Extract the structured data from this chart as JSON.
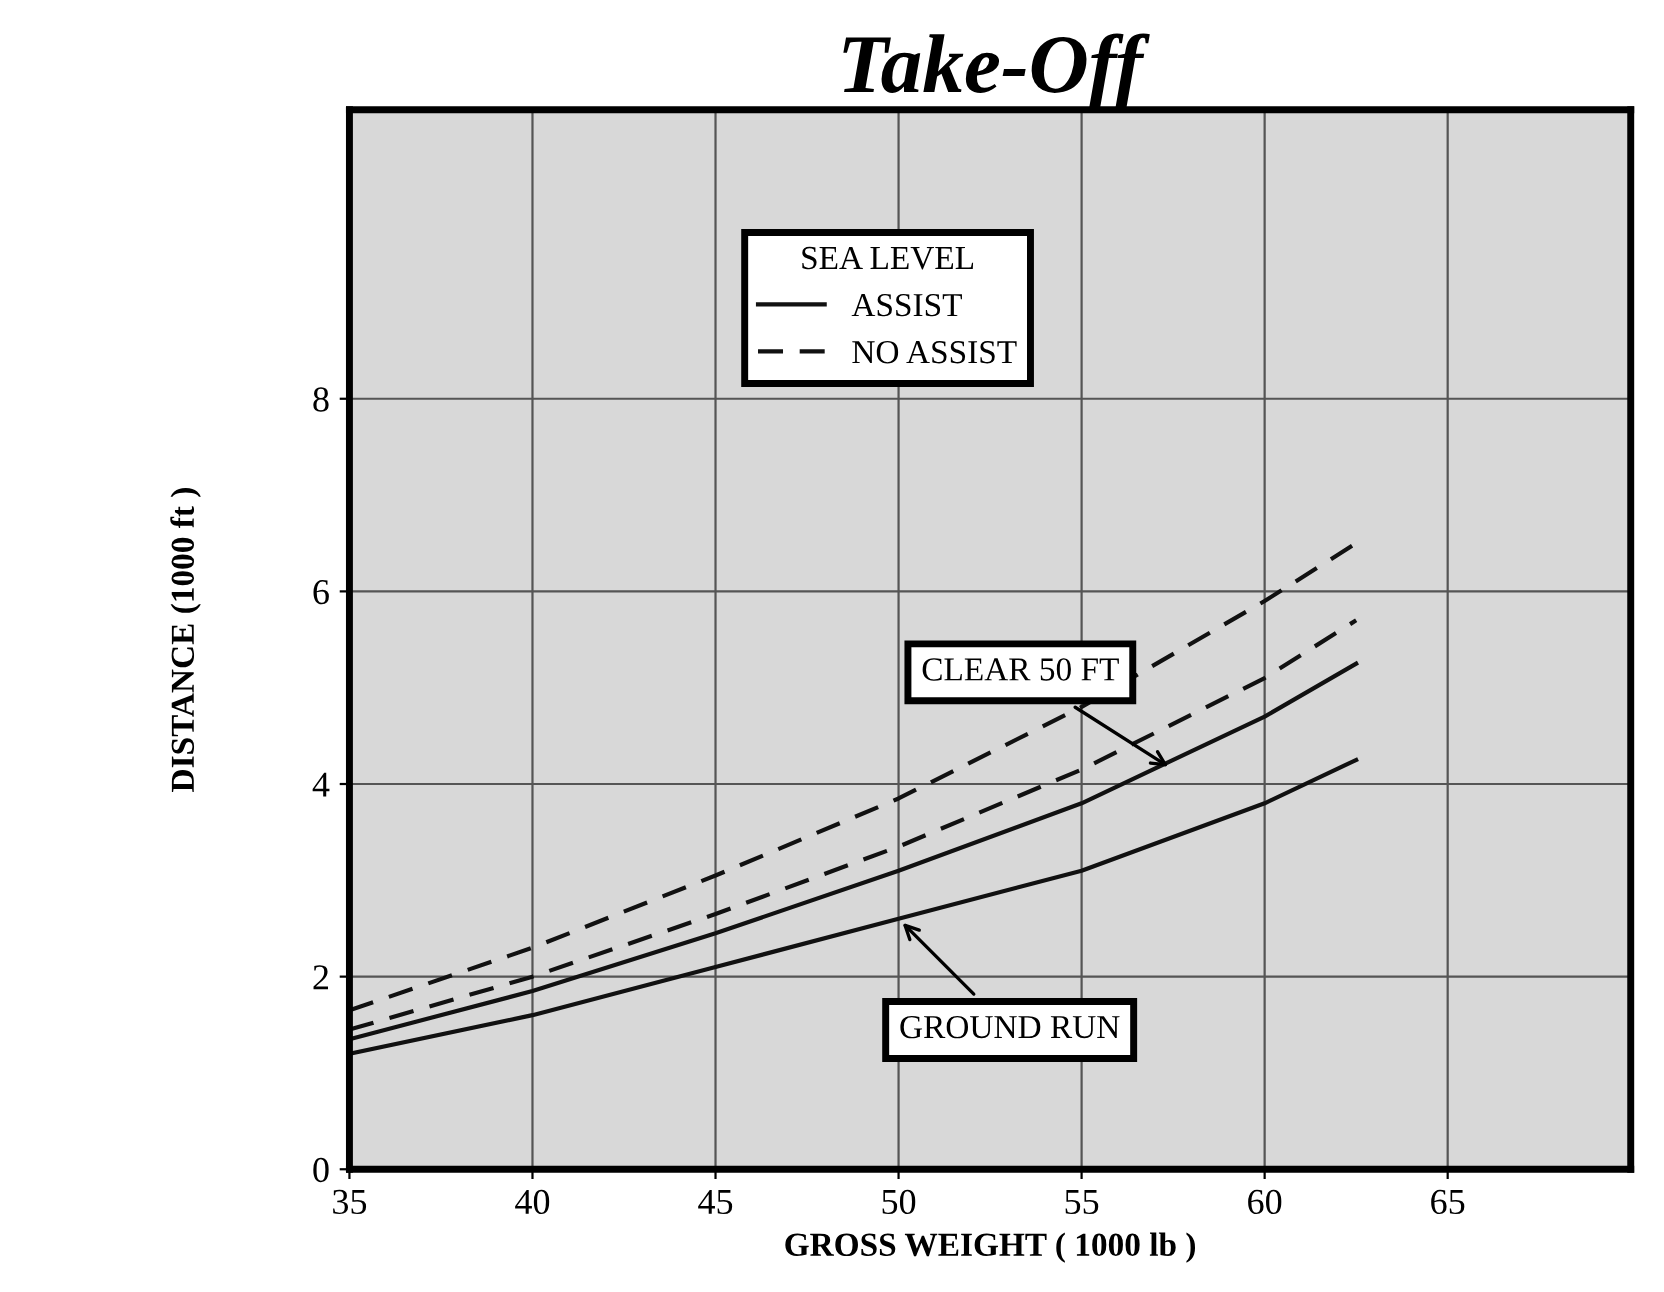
{
  "chart_data": {
    "type": "line",
    "title": "Take-Off",
    "xlabel": "GROSS WEIGHT ( 1000 lb )",
    "ylabel": "DISTANCE (1000 ft )",
    "legend_title": "SEA LEVEL",
    "x": [
      35,
      40,
      45,
      50,
      55,
      60,
      62.5
    ],
    "series": [
      {
        "name": "ASSIST",
        "color": "#111111",
        "line_style": "solid",
        "values": [
          1.2,
          1.6,
          2.1,
          2.6,
          3.1,
          3.8,
          4.25
        ]
      },
      {
        "color": "#111111",
        "line_style": "solid",
        "values": [
          1.35,
          1.85,
          2.45,
          3.1,
          3.8,
          4.7,
          5.25
        ]
      },
      {
        "name": "NO ASSIST",
        "color": "#111111",
        "line_style": "dashed",
        "values": [
          1.45,
          2.0,
          2.65,
          3.35,
          4.15,
          5.1,
          5.7
        ]
      },
      {
        "color": "#111111",
        "line_style": "dashed",
        "values": [
          1.65,
          2.3,
          3.05,
          3.85,
          4.8,
          5.9,
          6.5
        ]
      }
    ],
    "annotations": [
      {
        "text": "CLEAR 50 FT",
        "x": 57.5,
        "y": 4.15
      },
      {
        "text": "GROUND RUN",
        "x": 50,
        "y": 2.6
      }
    ],
    "xlim": [
      35,
      70
    ],
    "xticks": [
      35,
      40,
      45,
      50,
      55,
      60,
      65
    ],
    "ylim": [
      0,
      11
    ],
    "yticks": [
      0,
      2,
      4,
      6,
      8
    ],
    "grid": true,
    "legend": "top",
    "marker": "none"
  }
}
